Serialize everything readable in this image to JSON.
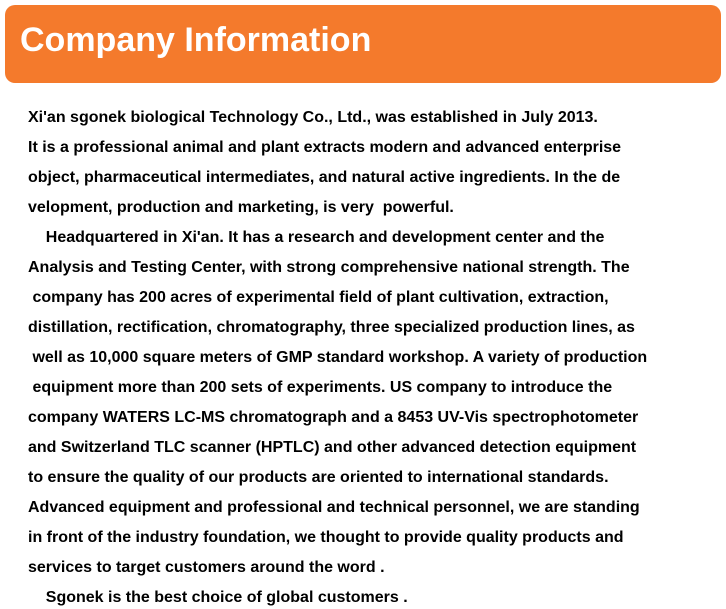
{
  "header": {
    "title": "Company Information"
  },
  "body": {
    "lines": [
      "Xi'an sgonek biological Technology Co., Ltd., was established in July 2013.",
      "It is a professional animal and plant extracts modern and advanced enterprise",
      "object, pharmaceutical intermediates, and natural active ingredients. In the de",
      "velopment, production and marketing, is very  powerful.",
      "    Headquartered in Xi'an. It has a research and development center and the",
      "Analysis and Testing Center, with strong comprehensive national strength. The",
      " company has 200 acres of experimental field of plant cultivation, extraction,",
      "distillation, rectification, chromatography, three specialized production lines, as",
      " well as 10,000 square meters of GMP standard workshop. A variety of production",
      " equipment more than 200 sets of experiments. US company to introduce the",
      "company WATERS LC-MS chromatograph and a 8453 UV-Vis spectrophotometer",
      "and Switzerland TLC scanner (HPTLC) and other advanced detection equipment",
      "to ensure the quality of our products are oriented to international standards.",
      "Advanced equipment and professional and technical personnel, we are standing",
      "in front of the industry foundation, we thought to provide quality products and",
      "services to target customers around the word .",
      "    Sgonek is the best choice of global customers ."
    ]
  }
}
